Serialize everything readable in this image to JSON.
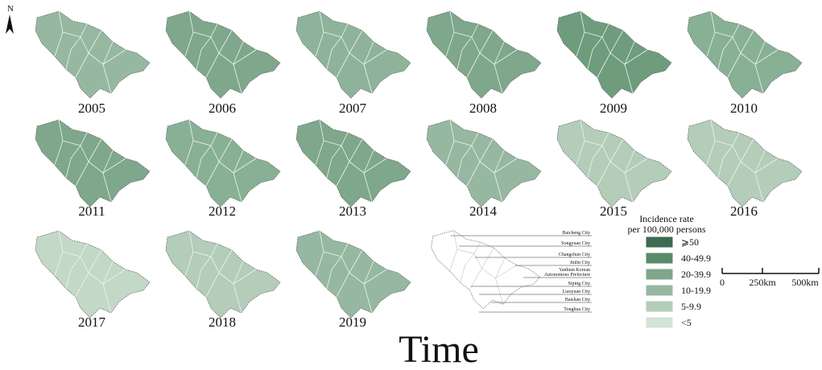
{
  "north_arrow": "N",
  "panels": [
    "2005",
    "2006",
    "2007",
    "2008",
    "2009",
    "2010",
    "2011",
    "2012",
    "2013",
    "2014",
    "2015",
    "2016",
    "2017",
    "2018",
    "2019"
  ],
  "legend": {
    "title": [
      "Incidence rate",
      "per 100,000 persons"
    ],
    "items": [
      {
        "label": "⩾50",
        "color": "#3e6b50"
      },
      {
        "label": "40-49.9",
        "color": "#5a8a6a"
      },
      {
        "label": "20-39.9",
        "color": "#7ea78c"
      },
      {
        "label": "10-19.9",
        "color": "#96b8a0"
      },
      {
        "label": "5-9.9",
        "color": "#b3cdb9"
      },
      {
        "label": "<5",
        "color": "#d3e3d6"
      }
    ]
  },
  "scale_bar": [
    "0",
    "250km",
    "500km"
  ],
  "reference_map": {
    "labels": [
      [
        "Baicheng City"
      ],
      [
        "Songyuan City"
      ],
      [
        "Changchun City"
      ],
      [
        "Jinlin City"
      ],
      [
        "Yanbian Korean",
        "Autonomous Prefecture"
      ],
      [
        "Siping City"
      ],
      [
        "Liaoyuan City"
      ],
      [
        "Baishan City"
      ],
      [
        "Tonghua City"
      ]
    ]
  },
  "axis_title": "Time"
}
